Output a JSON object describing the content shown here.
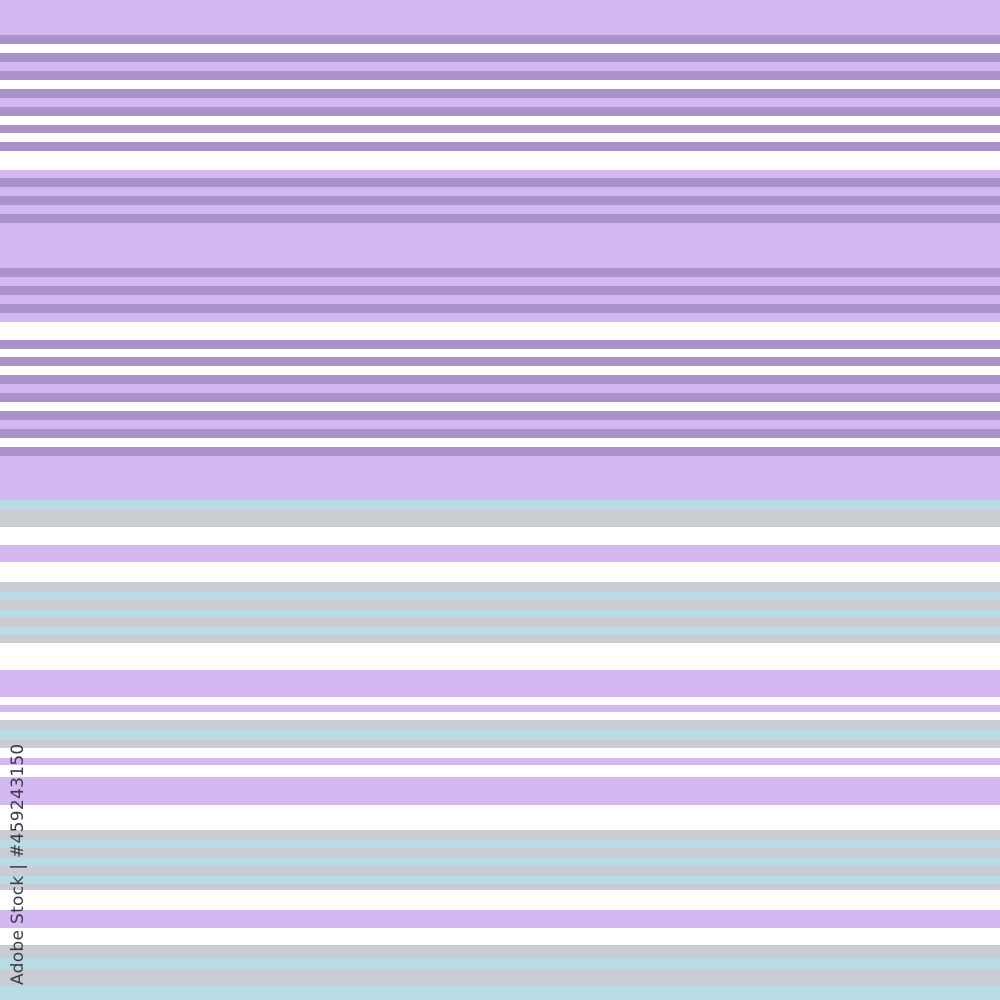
{
  "image": {
    "description_type": "horizontal stripe pattern",
    "colors": {
      "light_purple": "#d4b8f2",
      "dark_purple": "#a992c9",
      "white": "#ffffff",
      "gray": "#c9cdd1",
      "light_blue": "#b9dbe5"
    }
  },
  "watermark": {
    "text": "Adobe Stock | #459243150"
  }
}
